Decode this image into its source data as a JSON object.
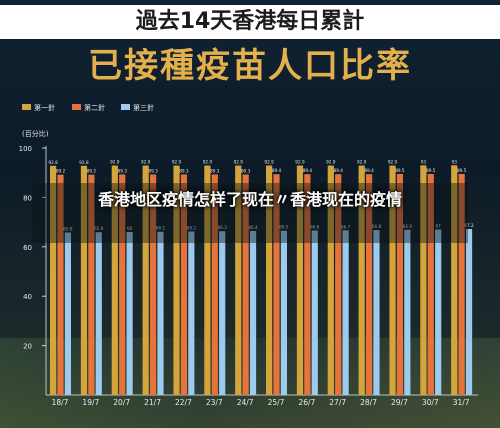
{
  "header": {
    "top_title": "過去14天香港每日累計",
    "main_title": "已接種疫苗人口比率"
  },
  "overlay": {
    "text": "香港地区疫情怎样了现在〃香港现在的疫情"
  },
  "chart_data": {
    "type": "bar",
    "ylabel": "(百分比)",
    "ylim": [
      0,
      100
    ],
    "yticks": [
      20,
      40,
      60,
      80,
      100
    ],
    "legend_position": "top-left",
    "categories": [
      "18/7",
      "19/7",
      "20/7",
      "21/7",
      "22/7",
      "23/7",
      "24/7",
      "25/7",
      "26/7",
      "27/7",
      "28/7",
      "29/7",
      "30/7",
      "31/7"
    ],
    "series": [
      {
        "name": "第一針",
        "color": "#d4a53a",
        "values": [
          92.8,
          92.8,
          92.9,
          92.9,
          92.9,
          92.9,
          92.9,
          92.9,
          92.9,
          92.9,
          92.9,
          92.9,
          93,
          93
        ]
      },
      {
        "name": "第二針",
        "color": "#e5733a",
        "values": [
          89.2,
          89.2,
          89.3,
          89.3,
          89.3,
          89.3,
          89.3,
          89.4,
          89.4,
          89.4,
          89.4,
          89.5,
          89.5,
          89.5
        ]
      },
      {
        "name": "第三針",
        "color": "#9ccbed",
        "values": [
          65.8,
          65.9,
          66,
          66.1,
          66.2,
          66.3,
          66.4,
          66.5,
          66.6,
          66.7,
          66.8,
          66.9,
          67,
          67.2
        ]
      }
    ],
    "value_labels": [
      [
        "92.8",
        "92.8",
        "92.9",
        "92.9",
        "92.9",
        "92.9",
        "92.9",
        "92.9",
        "92.9",
        "92.9",
        "92.9",
        "92.9",
        "93",
        "93"
      ],
      [
        "89.2",
        "89.2",
        "89.3",
        "89.3",
        "89.3",
        "89.3",
        "89.3",
        "89.4",
        "89.4",
        "89.4",
        "89.4",
        "89.5",
        "89.5",
        "89.5"
      ],
      [
        "65.8",
        "65.9",
        "66",
        "66.1",
        "66.2",
        "66.3",
        "66.4",
        "66.5",
        "66.6",
        "66.7",
        "66.8",
        "66.9",
        "67",
        "67.2"
      ]
    ]
  }
}
